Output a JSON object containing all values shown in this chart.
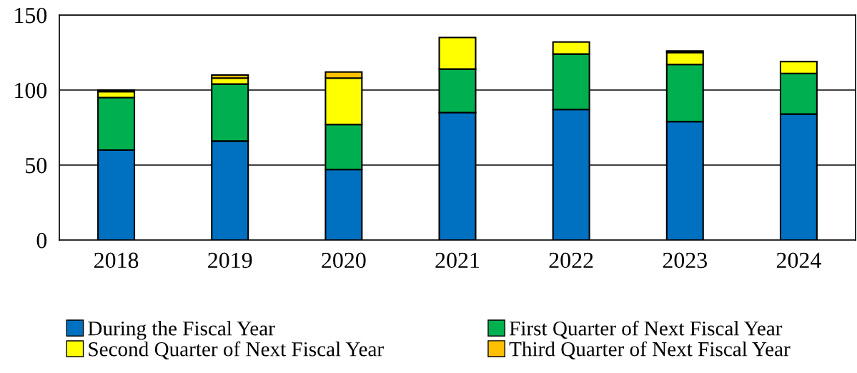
{
  "chart_data": {
    "type": "bar",
    "stacked": true,
    "categories": [
      "2018",
      "2019",
      "2020",
      "2021",
      "2022",
      "2023",
      "2024"
    ],
    "series": [
      {
        "name": "During the Fiscal Year",
        "color": "#0070c0",
        "values": [
          60,
          66,
          47,
          85,
          87,
          79,
          84
        ]
      },
      {
        "name": "First Quarter of Next Fiscal Year",
        "color": "#00b050",
        "values": [
          35,
          38,
          30,
          29,
          37,
          38,
          27
        ]
      },
      {
        "name": "Second Quarter of Next Fiscal Year",
        "color": "#ffff00",
        "values": [
          4,
          4,
          31,
          21,
          8,
          8,
          8
        ]
      },
      {
        "name": "Third Quarter of Next Fiscal Year",
        "color": "#ffc000",
        "values": [
          1,
          2,
          4,
          null,
          null,
          1,
          null
        ]
      }
    ],
    "ylim": [
      0,
      150
    ],
    "yticks": [
      0,
      50,
      100,
      150
    ],
    "grid": "y",
    "legend": "bottom"
  }
}
